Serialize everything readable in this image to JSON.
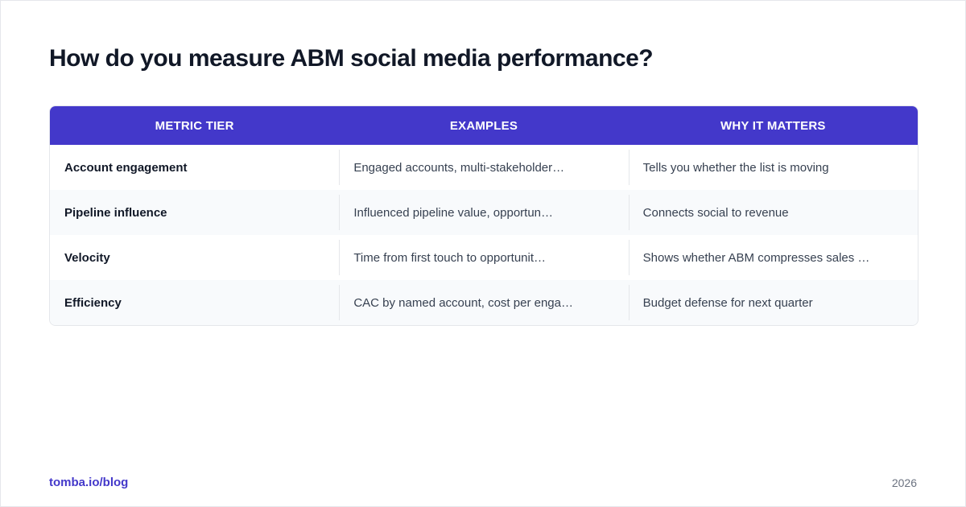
{
  "title": "How do you measure ABM social media performance?",
  "table": {
    "headers": [
      "METRIC TIER",
      "EXAMPLES",
      "WHY IT MATTERS"
    ],
    "rows": [
      [
        "Account engagement",
        "Engaged accounts, multi-stakeholder…",
        "Tells you whether the list is moving"
      ],
      [
        "Pipeline influence",
        "Influenced pipeline value, opportun…",
        "Connects social to revenue"
      ],
      [
        "Velocity",
        "Time from first touch to opportunit…",
        "Shows whether ABM compresses sales …"
      ],
      [
        "Efficiency",
        "CAC by named account, cost per enga…",
        "Budget defense for next quarter"
      ]
    ]
  },
  "footer": {
    "link": "tomba.io/blog",
    "year": "2026"
  },
  "colors": {
    "header_bg": "#4338ca",
    "accent_link": "#4338ca",
    "alt_row_bg": "#f8fafc",
    "title_text": "#111827"
  }
}
